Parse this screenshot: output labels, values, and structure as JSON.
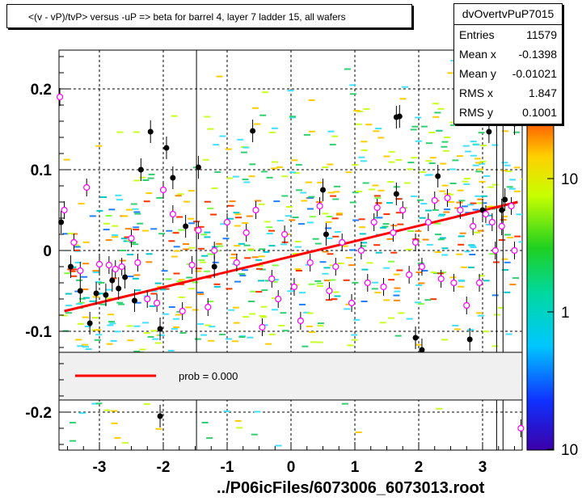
{
  "chart_data": {
    "type": "scatter",
    "title": "<(v - vP)/tvP> versus  -uP => beta for barrel 4, layer 7 ladder 15, all wafers",
    "xlabel": "../P06icFiles/6073006_6073013.root",
    "ylabel": "",
    "xlim": [
      -3.65,
      3.65
    ],
    "ylim": [
      -0.25,
      0.25
    ],
    "x_ticks": [
      "-3",
      "-2",
      "-1",
      "0",
      "1",
      "2",
      "3"
    ],
    "y_ticks": [
      "-0.2",
      "-0.1",
      "0",
      "0.1",
      "0.2"
    ],
    "grid": true,
    "colorbar": {
      "scale": "log",
      "tick_labels": [
        "10",
        "1",
        "10"
      ]
    },
    "fit_line": {
      "x": [
        -3.55,
        3.55
      ],
      "y": [
        -0.075,
        0.06
      ],
      "color": "#ff0000"
    },
    "legend": {
      "label": "prob = 0.000",
      "placement": "bottom"
    },
    "stats": {
      "name": "dvOvertvPuP7015",
      "rows": [
        {
          "label": "Entries",
          "value": "11579"
        },
        {
          "label": "Mean x",
          "value": "-0.1398"
        },
        {
          "label": "Mean y",
          "value": "-0.01021"
        },
        {
          "label": "RMS x",
          "value": "1.847"
        },
        {
          "label": "RMS y",
          "value": "0.1001"
        }
      ]
    },
    "profile_points": [
      {
        "x": -3.6,
        "y": 0.035
      },
      {
        "x": -3.45,
        "y": -0.02
      },
      {
        "x": -3.3,
        "y": -0.05
      },
      {
        "x": -3.15,
        "y": -0.09
      },
      {
        "x": -3.05,
        "y": -0.053
      },
      {
        "x": -2.9,
        "y": -0.055
      },
      {
        "x": -2.8,
        "y": -0.037
      },
      {
        "x": -2.7,
        "y": -0.047
      },
      {
        "x": -2.6,
        "y": -0.033
      },
      {
        "x": -2.45,
        "y": -0.062
      },
      {
        "x": -2.35,
        "y": 0.1
      },
      {
        "x": -2.2,
        "y": 0.147
      },
      {
        "x": -2.05,
        "y": -0.097
      },
      {
        "x": -1.95,
        "y": 0.127
      },
      {
        "x": -1.85,
        "y": 0.09
      },
      {
        "x": -1.65,
        "y": 0.03
      },
      {
        "x": -1.45,
        "y": 0.103
      },
      {
        "x": -1.2,
        "y": -0.02
      },
      {
        "x": -0.6,
        "y": 0.148
      },
      {
        "x": 0.5,
        "y": 0.075
      },
      {
        "x": 0.55,
        "y": 0.02
      },
      {
        "x": 1.65,
        "y": 0.07
      },
      {
        "x": 1.95,
        "y": -0.108
      },
      {
        "x": 2.05,
        "y": -0.123
      },
      {
        "x": 2.3,
        "y": 0.092
      },
      {
        "x": 2.8,
        "y": -0.11
      },
      {
        "x": 3.0,
        "y": 0.05
      },
      {
        "x": 3.1,
        "y": 0.147
      },
      {
        "x": 3.3,
        "y": 0.05
      },
      {
        "x": 3.35,
        "y": 0.063
      },
      {
        "x": 3.5,
        "y": 0.157
      },
      {
        "x": -2.05,
        "y": -0.205
      },
      {
        "x": 1.65,
        "y": 0.165
      },
      {
        "x": 1.7,
        "y": 0.166
      }
    ],
    "mean_points": [
      {
        "x": -3.62,
        "y": 0.19
      },
      {
        "x": -3.55,
        "y": 0.05
      },
      {
        "x": -3.4,
        "y": 0.01
      },
      {
        "x": -3.3,
        "y": -0.025
      },
      {
        "x": -3.2,
        "y": 0.078
      },
      {
        "x": -3.0,
        "y": -0.017
      },
      {
        "x": -2.85,
        "y": -0.018
      },
      {
        "x": -2.75,
        "y": -0.023
      },
      {
        "x": -2.65,
        "y": -0.02
      },
      {
        "x": -2.5,
        "y": 0.015
      },
      {
        "x": -2.4,
        "y": -0.015
      },
      {
        "x": -2.25,
        "y": -0.06
      },
      {
        "x": -2.1,
        "y": -0.065
      },
      {
        "x": -2.0,
        "y": 0.075
      },
      {
        "x": -1.85,
        "y": 0.045
      },
      {
        "x": -1.7,
        "y": -0.075
      },
      {
        "x": -1.55,
        "y": -0.018
      },
      {
        "x": -1.45,
        "y": 0.025
      },
      {
        "x": -1.3,
        "y": -0.07
      },
      {
        "x": -1.2,
        "y": 0.0
      },
      {
        "x": -1.0,
        "y": 0.035
      },
      {
        "x": -0.85,
        "y": -0.015
      },
      {
        "x": -0.7,
        "y": 0.022
      },
      {
        "x": -0.55,
        "y": 0.05
      },
      {
        "x": -0.45,
        "y": -0.095
      },
      {
        "x": -0.3,
        "y": -0.035
      },
      {
        "x": -0.2,
        "y": -0.06
      },
      {
        "x": -0.1,
        "y": 0.02
      },
      {
        "x": 0.05,
        "y": -0.045
      },
      {
        "x": 0.15,
        "y": -0.087
      },
      {
        "x": 0.3,
        "y": -0.015
      },
      {
        "x": 0.45,
        "y": 0.055
      },
      {
        "x": 0.6,
        "y": -0.05
      },
      {
        "x": 0.7,
        "y": -0.02
      },
      {
        "x": 0.8,
        "y": 0.01
      },
      {
        "x": 0.95,
        "y": -0.065
      },
      {
        "x": 1.1,
        "y": 0.0
      },
      {
        "x": 1.2,
        "y": -0.04
      },
      {
        "x": 1.3,
        "y": 0.035
      },
      {
        "x": 1.35,
        "y": 0.053
      },
      {
        "x": 1.45,
        "y": -0.045
      },
      {
        "x": 1.6,
        "y": 0.022
      },
      {
        "x": 1.75,
        "y": 0.05
      },
      {
        "x": 1.85,
        "y": -0.03
      },
      {
        "x": 1.95,
        "y": 0.01
      },
      {
        "x": 2.05,
        "y": -0.02
      },
      {
        "x": 2.15,
        "y": 0.035
      },
      {
        "x": 2.25,
        "y": 0.062
      },
      {
        "x": 2.35,
        "y": -0.035
      },
      {
        "x": 2.45,
        "y": 0.065
      },
      {
        "x": 2.55,
        "y": -0.04
      },
      {
        "x": 2.65,
        "y": 0.05
      },
      {
        "x": 2.75,
        "y": -0.068
      },
      {
        "x": 2.85,
        "y": 0.03
      },
      {
        "x": 2.95,
        "y": -0.04
      },
      {
        "x": 3.05,
        "y": 0.045
      },
      {
        "x": 3.15,
        "y": 0.035
      },
      {
        "x": 3.2,
        "y": 0.0
      },
      {
        "x": 3.3,
        "y": 0.03
      },
      {
        "x": 3.45,
        "y": 0.055
      },
      {
        "x": 3.5,
        "y": 0.0
      },
      {
        "x": 3.6,
        "y": -0.22
      }
    ]
  }
}
